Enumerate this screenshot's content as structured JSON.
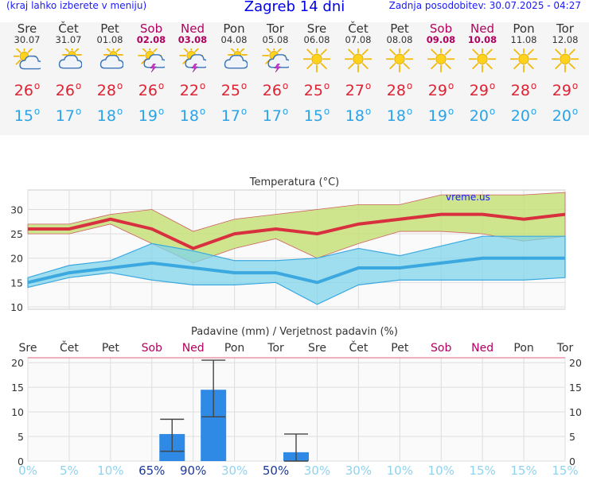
{
  "header": {
    "hint": "(kraj lahko izberete v meniju)",
    "title": "Zagreb 14 dni",
    "updated": "Zadnja posodobitev: 30.07.2025 - 04:27"
  },
  "days": [
    {
      "name": "Sre",
      "date": "30.07",
      "weekend": false,
      "icon": "partly-cloudy-icon",
      "max": "26",
      "min": "15"
    },
    {
      "name": "Čet",
      "date": "31.07",
      "weekend": false,
      "icon": "cloudy-sun-icon",
      "max": "26",
      "min": "17"
    },
    {
      "name": "Pet",
      "date": "01.08",
      "weekend": false,
      "icon": "cloudy-sun-icon",
      "max": "28",
      "min": "18"
    },
    {
      "name": "Sob",
      "date": "02.08",
      "weekend": true,
      "icon": "thunderstorm-icon",
      "max": "26",
      "min": "19"
    },
    {
      "name": "Ned",
      "date": "03.08",
      "weekend": true,
      "icon": "thunderstorm-icon",
      "max": "22",
      "min": "18"
    },
    {
      "name": "Pon",
      "date": "04.08",
      "weekend": false,
      "icon": "cloudy-sun-icon",
      "max": "25",
      "min": "17"
    },
    {
      "name": "Tor",
      "date": "05.08",
      "weekend": false,
      "icon": "thunderstorm-icon",
      "max": "26",
      "min": "17"
    },
    {
      "name": "Sre",
      "date": "06.08",
      "weekend": false,
      "icon": "sun-icon",
      "max": "25",
      "min": "15"
    },
    {
      "name": "Čet",
      "date": "07.08",
      "weekend": false,
      "icon": "sun-icon",
      "max": "27",
      "min": "18"
    },
    {
      "name": "Pet",
      "date": "08.08",
      "weekend": false,
      "icon": "sun-icon",
      "max": "28",
      "min": "18"
    },
    {
      "name": "Sob",
      "date": "09.08",
      "weekend": true,
      "icon": "sun-icon",
      "max": "29",
      "min": "19"
    },
    {
      "name": "Ned",
      "date": "10.08",
      "weekend": true,
      "icon": "sun-icon",
      "max": "29",
      "min": "20"
    },
    {
      "name": "Pon",
      "date": "11.08",
      "weekend": false,
      "icon": "sun-icon",
      "max": "28",
      "min": "20"
    },
    {
      "name": "Tor",
      "date": "12.08",
      "weekend": false,
      "icon": "sun-icon",
      "max": "29",
      "min": "20"
    }
  ],
  "chart_data": [
    {
      "type": "line",
      "title": "Temperatura (°C)",
      "watermark": "vreme.us",
      "categories": [
        "30.07",
        "31.07",
        "01.08",
        "02.08",
        "03.08",
        "04.08",
        "05.08",
        "06.08",
        "07.08",
        "08.08",
        "09.08",
        "10.08",
        "11.08",
        "12.08"
      ],
      "ylim": [
        9.5,
        34
      ],
      "yticks": [
        "10",
        "15",
        "20",
        "25",
        "30"
      ],
      "grid": true,
      "series": [
        {
          "role": "max",
          "color": "#d8303f",
          "values": [
            26,
            26,
            28,
            26,
            22,
            25,
            26,
            25,
            27,
            28,
            29,
            29,
            28,
            29
          ]
        },
        {
          "role": "min",
          "color": "#3ca8e0",
          "values": [
            15,
            17,
            18,
            19,
            18,
            17,
            17,
            15,
            18,
            18,
            19,
            20,
            20,
            20
          ]
        },
        {
          "role": "max-range-high",
          "values": [
            27,
            27,
            29,
            30,
            25.5,
            28,
            29,
            30,
            31,
            31,
            33,
            33,
            33,
            33.5
          ]
        },
        {
          "role": "max-range-low",
          "values": [
            25,
            25,
            27,
            23,
            19,
            22,
            24,
            20,
            23,
            25.5,
            25.5,
            25,
            23.5,
            24.5
          ]
        },
        {
          "role": "min-range-high",
          "values": [
            16,
            18.5,
            19.5,
            23,
            21.5,
            19.5,
            19.5,
            20,
            22,
            20.5,
            22.5,
            24.5,
            24.5,
            24.5
          ]
        },
        {
          "role": "min-range-low",
          "values": [
            14,
            16,
            17,
            15.5,
            14.5,
            14.5,
            15,
            10.5,
            14.5,
            15.5,
            15.5,
            15.5,
            15.5,
            16
          ]
        }
      ]
    },
    {
      "type": "bar",
      "title": "Padavine (mm) / Verjetnost padavin (%)",
      "categories": [
        "Sre",
        "Čet",
        "Pet",
        "Sob",
        "Ned",
        "Pon",
        "Tor",
        "Sre",
        "Čet",
        "Pet",
        "Sob",
        "Ned",
        "Pon",
        "Tor"
      ],
      "weekend": [
        false,
        false,
        false,
        true,
        true,
        false,
        false,
        false,
        false,
        false,
        true,
        true,
        false,
        false
      ],
      "values": [
        0,
        0,
        0,
        5.5,
        14.5,
        0,
        1.8,
        0,
        0,
        0,
        0,
        0,
        0,
        0
      ],
      "error_high": [
        null,
        null,
        null,
        8.5,
        20.5,
        null,
        5.5,
        null,
        null,
        null,
        null,
        null,
        null,
        null
      ],
      "error_low": [
        null,
        null,
        null,
        2,
        9,
        null,
        0,
        null,
        null,
        null,
        null,
        null,
        null,
        null
      ],
      "probability": [
        "0%",
        "5%",
        "10%",
        "65%",
        "90%",
        "30%",
        "50%",
        "30%",
        "30%",
        "10%",
        "10%",
        "15%",
        "15%",
        "15%"
      ],
      "probability_strong": [
        false,
        false,
        false,
        true,
        true,
        false,
        true,
        false,
        false,
        false,
        false,
        false,
        false,
        false
      ],
      "ylim": [
        0,
        21
      ],
      "yticks": [
        "0",
        "5",
        "10",
        "15",
        "20"
      ],
      "bar_color": "#2f8ae6",
      "grid": true
    }
  ]
}
